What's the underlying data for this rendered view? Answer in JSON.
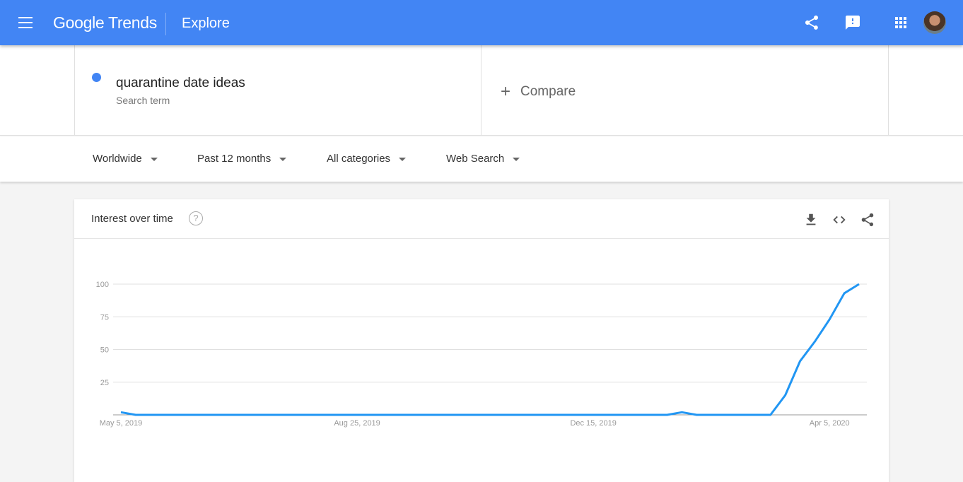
{
  "header": {
    "logo": "Google Trends",
    "page": "Explore",
    "icons": [
      "menu-icon",
      "share-icon",
      "feedback-icon",
      "apps-icon",
      "avatar"
    ]
  },
  "search": {
    "term": "quarantine date ideas",
    "term_type": "Search term",
    "term_color": "#4285f4",
    "compare_label": "Compare"
  },
  "filters": {
    "region": "Worldwide",
    "time": "Past 12 months",
    "category": "All categories",
    "search_type": "Web Search"
  },
  "card": {
    "title": "Interest over time",
    "icons": [
      "help-icon",
      "download-icon",
      "embed-icon",
      "share-icon"
    ]
  },
  "chart_data": {
    "type": "line",
    "title": "",
    "xlabel": "",
    "ylabel": "",
    "ylim": [
      0,
      100
    ],
    "y_ticks": [
      25,
      50,
      75,
      100
    ],
    "x_tick_labels": [
      "May 5, 2019",
      "Aug 25, 2019",
      "Dec 15, 2019",
      "Apr 5, 2020"
    ],
    "grid": true,
    "line_color": "#2196f3",
    "x": [
      "2019-05-05",
      "2019-05-12",
      "2019-05-19",
      "2019-05-26",
      "2019-06-02",
      "2019-06-09",
      "2019-06-16",
      "2019-06-23",
      "2019-06-30",
      "2019-07-07",
      "2019-07-14",
      "2019-07-21",
      "2019-07-28",
      "2019-08-04",
      "2019-08-11",
      "2019-08-18",
      "2019-08-25",
      "2019-09-01",
      "2019-09-08",
      "2019-09-15",
      "2019-09-22",
      "2019-09-29",
      "2019-10-06",
      "2019-10-13",
      "2019-10-20",
      "2019-10-27",
      "2019-11-03",
      "2019-11-10",
      "2019-11-17",
      "2019-11-24",
      "2019-12-01",
      "2019-12-08",
      "2019-12-15",
      "2019-12-22",
      "2019-12-29",
      "2020-01-05",
      "2020-01-12",
      "2020-01-19",
      "2020-01-26",
      "2020-02-02",
      "2020-02-09",
      "2020-02-16",
      "2020-02-23",
      "2020-03-01",
      "2020-03-08",
      "2020-03-15",
      "2020-03-22",
      "2020-03-29",
      "2020-04-05",
      "2020-04-12",
      "2020-04-19"
    ],
    "series": [
      {
        "values": [
          2,
          0,
          0,
          0,
          0,
          0,
          0,
          0,
          0,
          0,
          0,
          0,
          0,
          0,
          0,
          0,
          0,
          0,
          0,
          0,
          0,
          0,
          0,
          0,
          0,
          0,
          0,
          0,
          0,
          0,
          0,
          0,
          0,
          0,
          0,
          0,
          0,
          0,
          2,
          0,
          0,
          0,
          0,
          0,
          0,
          15,
          41,
          56,
          73,
          93,
          100
        ]
      }
    ]
  }
}
